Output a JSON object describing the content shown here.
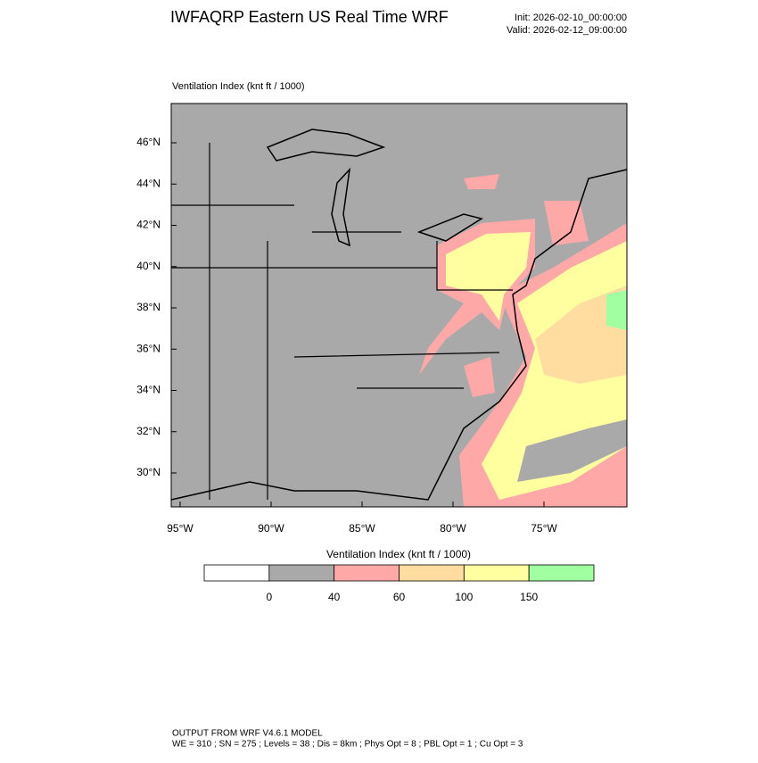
{
  "header": {
    "title": "IWFAQRP Eastern US Real Time WRF",
    "init": "Init: 2026-02-10_00:00:00",
    "valid": "Valid: 2026-02-12_09:00:00"
  },
  "map": {
    "label": "Ventilation Index   (knt ft / 1000)",
    "lat_labels": [
      "46°N",
      "44°N",
      "42°N",
      "40°N",
      "38°N",
      "36°N",
      "34°N",
      "32°N",
      "30°N"
    ],
    "lon_labels": [
      "95°W",
      "90°W",
      "85°W",
      "80°W",
      "75°W"
    ]
  },
  "colorbar": {
    "title": "Ventilation Index  (knt ft / 1000)",
    "colors": [
      "#ffffff",
      "#a9a9a9",
      "#ffa8a8",
      "#ffdca0",
      "#ffffa0",
      "#a0ffa0"
    ],
    "ticks": [
      0,
      40,
      60,
      100,
      150
    ]
  },
  "footer": {
    "lines": [
      "OUTPUT FROM WRF V4.6.1 MODEL",
      "WE = 310 ; SN = 275 ; Levels = 38 ; Dis = 8km ; Phys Opt = 8 ; PBL Opt = 1 ; Cu Opt = 3"
    ]
  }
}
